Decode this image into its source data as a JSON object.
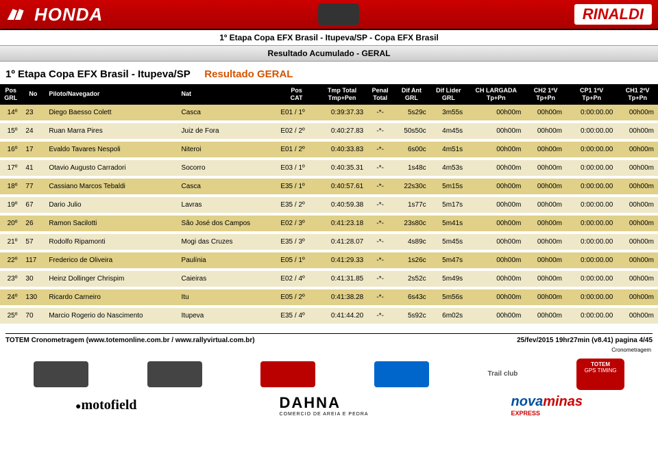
{
  "header": {
    "brand_left": "HONDA",
    "brand_right": "RINALDI"
  },
  "title": {
    "line1": "1º Etapa Copa EFX Brasil - Itupeva/SP - Copa EFX Brasil",
    "line2": "Resultado Acumulado - GERAL"
  },
  "section": {
    "left": "1º Etapa Copa EFX Brasil - Itupeva/SP",
    "right": "Resultado GERAL"
  },
  "columns": [
    {
      "l1": "Pos",
      "l2": "GRL"
    },
    {
      "l1": "No",
      "l2": ""
    },
    {
      "l1": "Piloto/Navegador",
      "l2": ""
    },
    {
      "l1": "Nat",
      "l2": ""
    },
    {
      "l1": "Pos",
      "l2": "CAT"
    },
    {
      "l1": "Tmp Total",
      "l2": "Tmp+Pen"
    },
    {
      "l1": "Penal",
      "l2": "Total"
    },
    {
      "l1": "Dif Ant",
      "l2": "GRL"
    },
    {
      "l1": "Dif Lider",
      "l2": "GRL"
    },
    {
      "l1": "CH LARGADA",
      "l2": "Tp+Pn"
    },
    {
      "l1": "CH2 1ºV",
      "l2": "Tp+Pn"
    },
    {
      "l1": "CP1 1ºV",
      "l2": "Tp+Pn"
    },
    {
      "l1": "CH1 2ºV",
      "l2": "Tp+Pn"
    }
  ],
  "rows": [
    {
      "pos": "14º",
      "no": "23",
      "pil": "Diego Baesso Colett",
      "nat": "Casca",
      "cat": "E01 / 1º",
      "tmp": "0:39:37.33",
      "pen": "-*-",
      "dant": "5s29c",
      "dlid": "3m55s",
      "c1": "00h00m",
      "c2": "00h00m",
      "c3": "0:00:00.00",
      "c4": "00h00m"
    },
    {
      "pos": "15º",
      "no": "24",
      "pil": "Ruan Marra Pires",
      "nat": "Juiz de Fora",
      "cat": "E02 / 2º",
      "tmp": "0:40:27.83",
      "pen": "-*-",
      "dant": "50s50c",
      "dlid": "4m45s",
      "c1": "00h00m",
      "c2": "00h00m",
      "c3": "0:00:00.00",
      "c4": "00h00m"
    },
    {
      "pos": "16º",
      "no": "17",
      "pil": "Evaldo Tavares Nespoli",
      "nat": "Niteroi",
      "cat": "E01 / 2º",
      "tmp": "0:40:33.83",
      "pen": "-*-",
      "dant": "6s00c",
      "dlid": "4m51s",
      "c1": "00h00m",
      "c2": "00h00m",
      "c3": "0:00:00.00",
      "c4": "00h00m"
    },
    {
      "pos": "17º",
      "no": "41",
      "pil": "Otavio Augusto Carradori",
      "nat": "Socorro",
      "cat": "E03 / 1º",
      "tmp": "0:40:35.31",
      "pen": "-*-",
      "dant": "1s48c",
      "dlid": "4m53s",
      "c1": "00h00m",
      "c2": "00h00m",
      "c3": "0:00:00.00",
      "c4": "00h00m"
    },
    {
      "pos": "18º",
      "no": "77",
      "pil": "Cassiano Marcos Tebaldi",
      "nat": "Casca",
      "cat": "E35 / 1º",
      "tmp": "0:40:57.61",
      "pen": "-*-",
      "dant": "22s30c",
      "dlid": "5m15s",
      "c1": "00h00m",
      "c2": "00h00m",
      "c3": "0:00:00.00",
      "c4": "00h00m"
    },
    {
      "pos": "19º",
      "no": "67",
      "pil": "Dario Julio",
      "nat": "Lavras",
      "cat": "E35 / 2º",
      "tmp": "0:40:59.38",
      "pen": "-*-",
      "dant": "1s77c",
      "dlid": "5m17s",
      "c1": "00h00m",
      "c2": "00h00m",
      "c3": "0:00:00.00",
      "c4": "00h00m"
    },
    {
      "pos": "20º",
      "no": "26",
      "pil": "Ramon Sacilotti",
      "nat": "São José dos Campos",
      "cat": "E02 / 3º",
      "tmp": "0:41:23.18",
      "pen": "-*-",
      "dant": "23s80c",
      "dlid": "5m41s",
      "c1": "00h00m",
      "c2": "00h00m",
      "c3": "0:00:00.00",
      "c4": "00h00m"
    },
    {
      "pos": "21º",
      "no": "57",
      "pil": "Rodolfo Ripamonti",
      "nat": "Mogi das Cruzes",
      "cat": "E35 / 3º",
      "tmp": "0:41:28.07",
      "pen": "-*-",
      "dant": "4s89c",
      "dlid": "5m45s",
      "c1": "00h00m",
      "c2": "00h00m",
      "c3": "0:00:00.00",
      "c4": "00h00m"
    },
    {
      "pos": "22º",
      "no": "117",
      "pil": "Frederico de Oliveira",
      "nat": "Paulínia",
      "cat": "E05 / 1º",
      "tmp": "0:41:29.33",
      "pen": "-*-",
      "dant": "1s26c",
      "dlid": "5m47s",
      "c1": "00h00m",
      "c2": "00h00m",
      "c3": "0:00:00.00",
      "c4": "00h00m"
    },
    {
      "pos": "23º",
      "no": "30",
      "pil": "Heinz Dollinger Chrispim",
      "nat": "Caieiras",
      "cat": "E02 / 4º",
      "tmp": "0:41:31.85",
      "pen": "-*-",
      "dant": "2s52c",
      "dlid": "5m49s",
      "c1": "00h00m",
      "c2": "00h00m",
      "c3": "0:00:00.00",
      "c4": "00h00m"
    },
    {
      "pos": "24º",
      "no": "130",
      "pil": "Ricardo Carneiro",
      "nat": "Itu",
      "cat": "E05 / 2º",
      "tmp": "0:41:38.28",
      "pen": "-*-",
      "dant": "6s43c",
      "dlid": "5m56s",
      "c1": "00h00m",
      "c2": "00h00m",
      "c3": "0:00:00.00",
      "c4": "00h00m"
    },
    {
      "pos": "25º",
      "no": "70",
      "pil": "Marcio Rogerio do Nascimento",
      "nat": "Itupeva",
      "cat": "E35 / 4º",
      "tmp": "0:41:44.20",
      "pen": "-*-",
      "dant": "5s92c",
      "dlid": "6m02s",
      "c1": "00h00m",
      "c2": "00h00m",
      "c3": "0:00:00.00",
      "c4": "00h00m"
    }
  ],
  "footer": {
    "left": "TOTEM Cronometragem (www.totemonline.com.br / www.rallyvirtual.com.br)",
    "right": "25/fev/2015  19hr27min (v8.41) pagina 4/45",
    "crono": "Cronometragem"
  },
  "sponsors": {
    "totem_line1": "TOTEM",
    "totem_line2": "GPS TIMING",
    "motofield": "motofield",
    "dahna": "DAHNA",
    "dahna_sub": "COMERCIO DE AREIA E PEDRA",
    "nova": "nova",
    "minas": "minas",
    "express": "EXPRESS"
  },
  "style": {
    "row_odd_bg": "#e0d088",
    "row_even_bg": "#eee8c8",
    "header_bg": "#c00000"
  }
}
